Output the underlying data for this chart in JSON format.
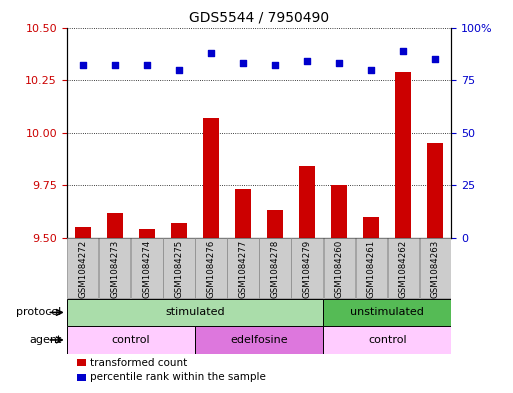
{
  "title": "GDS5544 / 7950490",
  "samples": [
    "GSM1084272",
    "GSM1084273",
    "GSM1084274",
    "GSM1084275",
    "GSM1084276",
    "GSM1084277",
    "GSM1084278",
    "GSM1084279",
    "GSM1084260",
    "GSM1084261",
    "GSM1084262",
    "GSM1084263"
  ],
  "bar_values": [
    9.55,
    9.62,
    9.54,
    9.57,
    10.07,
    9.73,
    9.63,
    9.84,
    9.75,
    9.6,
    10.29,
    9.95
  ],
  "dot_values": [
    82,
    82,
    82,
    80,
    88,
    83,
    82,
    84,
    83,
    80,
    89,
    85
  ],
  "ylim_left": [
    9.5,
    10.5
  ],
  "ylim_right": [
    0,
    100
  ],
  "yticks_left": [
    9.5,
    9.75,
    10.0,
    10.25,
    10.5
  ],
  "yticks_right": [
    0,
    25,
    50,
    75,
    100
  ],
  "bar_color": "#cc0000",
  "dot_color": "#0000cc",
  "bar_bottom": 9.5,
  "protocol_groups": [
    {
      "label": "stimulated",
      "start": 0,
      "end": 8,
      "color": "#aaddaa"
    },
    {
      "label": "unstimulated",
      "start": 8,
      "end": 12,
      "color": "#55bb55"
    }
  ],
  "agent_groups": [
    {
      "label": "control",
      "start": 0,
      "end": 4,
      "color": "#ffccff"
    },
    {
      "label": "edelfosine",
      "start": 4,
      "end": 8,
      "color": "#dd77dd"
    },
    {
      "label": "control",
      "start": 8,
      "end": 12,
      "color": "#ffccff"
    }
  ],
  "legend_items": [
    {
      "label": "transformed count",
      "color": "#cc0000"
    },
    {
      "label": "percentile rank within the sample",
      "color": "#0000cc"
    }
  ],
  "title_fontsize": 10,
  "tick_fontsize": 8,
  "sample_cell_color": "#cccccc",
  "right_ytick_labels": [
    "0",
    "25",
    "50",
    "75",
    "100%"
  ]
}
